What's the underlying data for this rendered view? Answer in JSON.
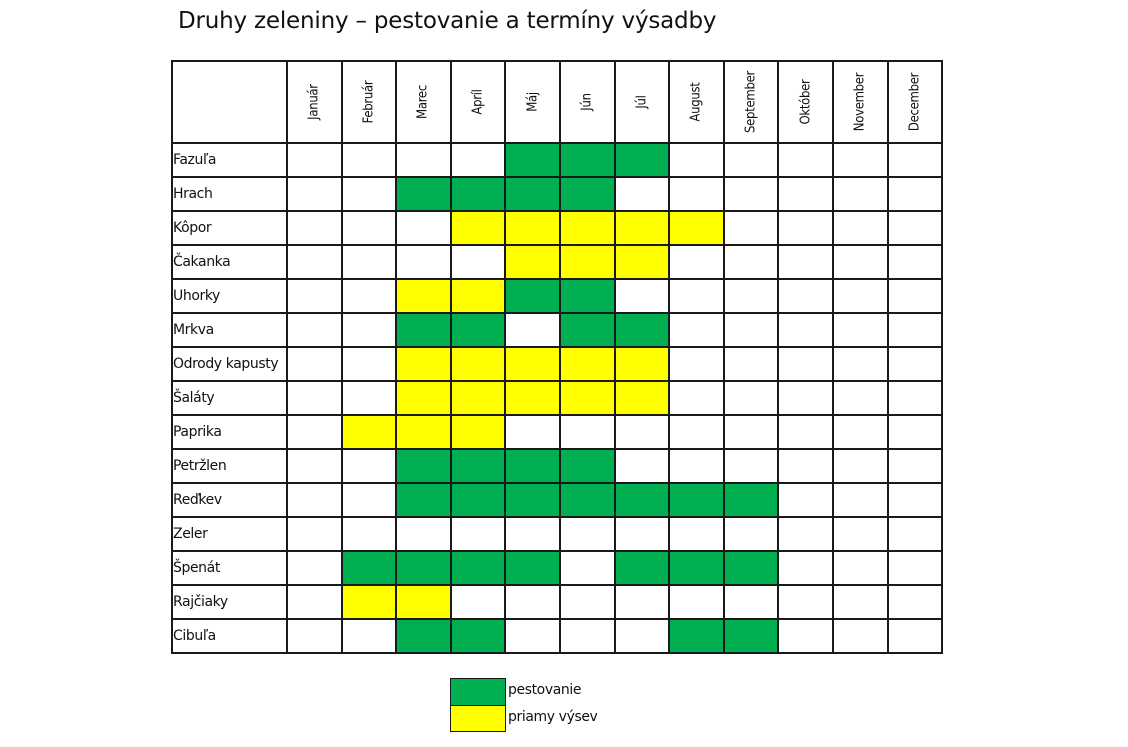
{
  "title": "Druhy zeleniny – pestovanie a termíny výsadby",
  "colors": {
    "G": "#00b050",
    "Y": "#ffff00"
  },
  "months": [
    "Január",
    "Február",
    "Marec",
    "Apríl",
    "Máj",
    "Jún",
    "Júl",
    "August",
    "September",
    "Október",
    "November",
    "December"
  ],
  "rows": [
    {
      "name": "Fazuľa",
      "cells": [
        "",
        "",
        "",
        "",
        "G",
        "G",
        "G",
        "",
        "",
        "",
        "",
        ""
      ]
    },
    {
      "name": "Hrach",
      "cells": [
        "",
        "",
        "G",
        "G",
        "G",
        "G",
        "",
        "",
        "",
        "",
        "",
        ""
      ]
    },
    {
      "name": "Kôpor",
      "cells": [
        "",
        "",
        "",
        "Y",
        "Y",
        "Y",
        "Y",
        "Y",
        "",
        "",
        "",
        ""
      ]
    },
    {
      "name": "Čakanka",
      "cells": [
        "",
        "",
        "",
        "",
        "Y",
        "Y",
        "Y",
        "",
        "",
        "",
        "",
        ""
      ]
    },
    {
      "name": "Uhorky",
      "cells": [
        "",
        "",
        "Y",
        "Y",
        "G",
        "G",
        "",
        "",
        "",
        "",
        "",
        ""
      ]
    },
    {
      "name": "Mrkva",
      "cells": [
        "",
        "",
        "G",
        "G",
        "",
        "G",
        "G",
        "",
        "",
        "",
        "",
        ""
      ]
    },
    {
      "name": "Odrody kapusty",
      "cells": [
        "",
        "",
        "Y",
        "Y",
        "Y",
        "Y",
        "Y",
        "",
        "",
        "",
        "",
        ""
      ]
    },
    {
      "name": "Šaláty",
      "cells": [
        "",
        "",
        "Y",
        "Y",
        "Y",
        "Y",
        "Y",
        "",
        "",
        "",
        "",
        ""
      ]
    },
    {
      "name": "Paprika",
      "cells": [
        "",
        "Y",
        "Y",
        "Y",
        "",
        "",
        "",
        "",
        "",
        "",
        "",
        ""
      ]
    },
    {
      "name": "Petržlen",
      "cells": [
        "",
        "",
        "G",
        "G",
        "G",
        "G",
        "",
        "",
        "",
        "",
        "",
        ""
      ]
    },
    {
      "name": "Reďkev",
      "cells": [
        "",
        "",
        "G",
        "G",
        "G",
        "G",
        "G",
        "G",
        "G",
        "",
        "",
        ""
      ]
    },
    {
      "name": "Zeler",
      "cells": [
        "",
        "",
        "",
        "",
        "",
        "",
        "",
        "",
        "",
        "",
        "",
        ""
      ]
    },
    {
      "name": "Špenát",
      "cells": [
        "",
        "G",
        "G",
        "G",
        "G",
        "",
        "G",
        "G",
        "G",
        "",
        "",
        ""
      ]
    },
    {
      "name": "Rajčiaky",
      "cells": [
        "",
        "Y",
        "Y",
        "",
        "",
        "",
        "",
        "",
        "",
        "",
        "",
        ""
      ]
    },
    {
      "name": "Cibuľa",
      "cells": [
        "",
        "",
        "G",
        "G",
        "",
        "",
        "",
        "G",
        "G",
        "",
        "",
        ""
      ]
    }
  ],
  "legend": [
    {
      "key": "G",
      "label": "pestovanie",
      "color": "#00b050"
    },
    {
      "key": "Y",
      "label": "priamy výsev",
      "color": "#ffff00"
    }
  ],
  "chart_data": {
    "type": "heatmap",
    "title": "Druhy zeleniny – pestovanie a termíny výsadby",
    "x": [
      "Január",
      "Február",
      "Marec",
      "Apríl",
      "Máj",
      "Jún",
      "Júl",
      "August",
      "September",
      "Október",
      "November",
      "December"
    ],
    "y": [
      "Fazuľa",
      "Hrach",
      "Kôpor",
      "Čakanka",
      "Uhorky",
      "Mrkva",
      "Odrody kapusty",
      "Šaláty",
      "Paprika",
      "Petržlen",
      "Reďkev",
      "Zeler",
      "Špenát",
      "Rajčiaky",
      "Cibuľa"
    ],
    "legend": {
      "G": "pestovanie",
      "Y": "priamy výsev"
    },
    "values": [
      [
        "",
        "",
        "",
        "",
        "G",
        "G",
        "G",
        "",
        "",
        "",
        "",
        ""
      ],
      [
        "",
        "",
        "G",
        "G",
        "G",
        "G",
        "",
        "",
        "",
        "",
        "",
        ""
      ],
      [
        "",
        "",
        "",
        "Y",
        "Y",
        "Y",
        "Y",
        "Y",
        "",
        "",
        "",
        ""
      ],
      [
        "",
        "",
        "",
        "",
        "Y",
        "Y",
        "Y",
        "",
        "",
        "",
        "",
        ""
      ],
      [
        "",
        "",
        "Y",
        "Y",
        "G",
        "G",
        "",
        "",
        "",
        "",
        "",
        ""
      ],
      [
        "",
        "",
        "G",
        "G",
        "",
        "G",
        "G",
        "",
        "",
        "",
        "",
        ""
      ],
      [
        "",
        "",
        "Y",
        "Y",
        "Y",
        "Y",
        "Y",
        "",
        "",
        "",
        "",
        ""
      ],
      [
        "",
        "",
        "Y",
        "Y",
        "Y",
        "Y",
        "Y",
        "",
        "",
        "",
        "",
        ""
      ],
      [
        "",
        "Y",
        "Y",
        "Y",
        "",
        "",
        "",
        "",
        "",
        "",
        "",
        ""
      ],
      [
        "",
        "",
        "G",
        "G",
        "G",
        "G",
        "",
        "",
        "",
        "",
        "",
        ""
      ],
      [
        "",
        "",
        "G",
        "G",
        "G",
        "G",
        "G",
        "G",
        "G",
        "",
        "",
        ""
      ],
      [
        "",
        "",
        "",
        "",
        "",
        "",
        "",
        "",
        "",
        "",
        "",
        ""
      ],
      [
        "",
        "G",
        "G",
        "G",
        "G",
        "",
        "G",
        "G",
        "G",
        "",
        "",
        ""
      ],
      [
        "",
        "Y",
        "Y",
        "",
        "",
        "",
        "",
        "",
        "",
        "",
        "",
        ""
      ],
      [
        "",
        "",
        "G",
        "G",
        "",
        "",
        "",
        "G",
        "G",
        "",
        "",
        ""
      ]
    ],
    "legend_position": "bottom-center"
  }
}
